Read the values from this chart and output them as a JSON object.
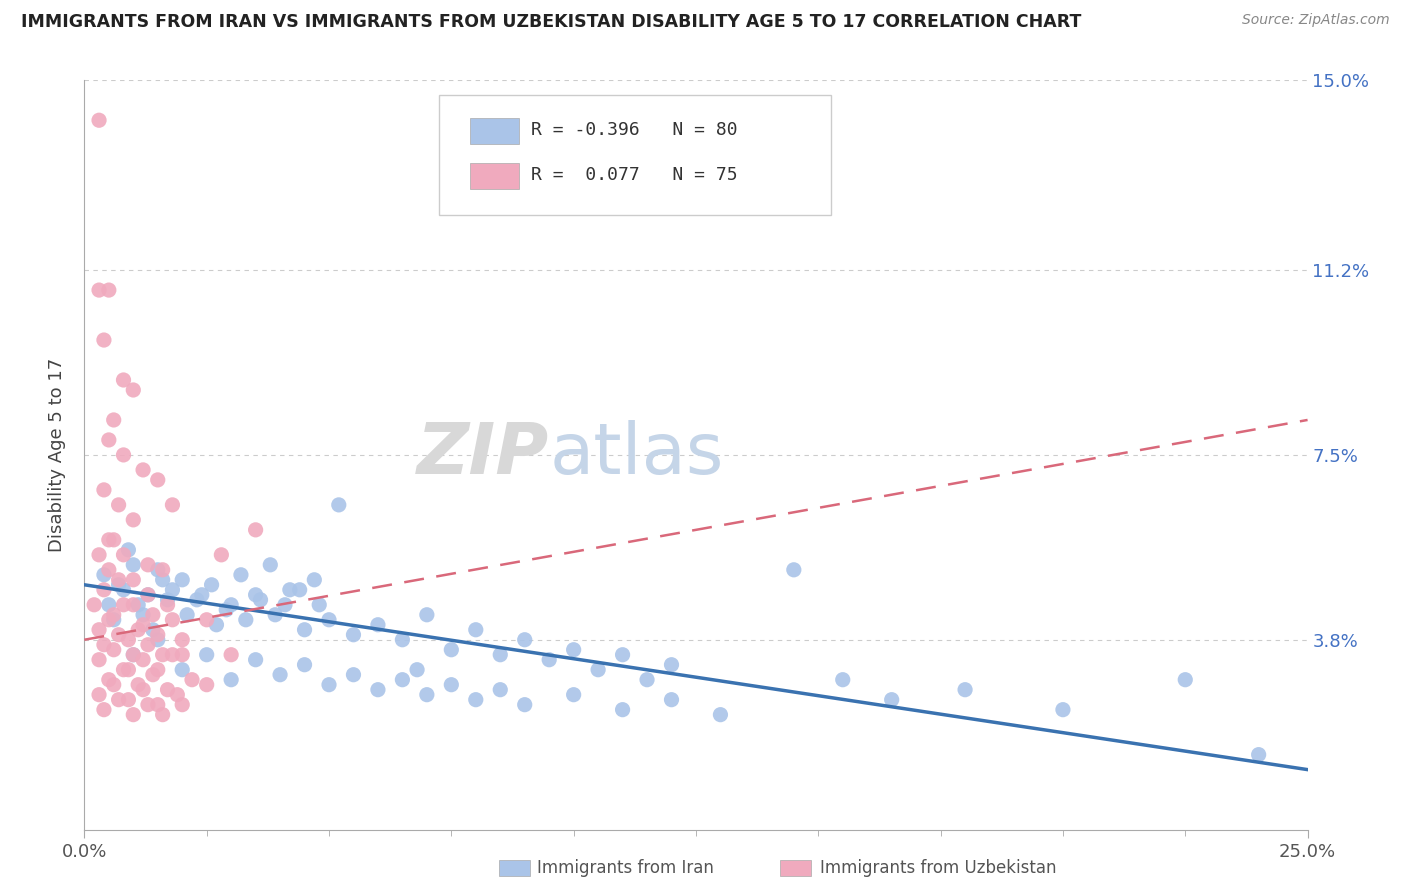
{
  "title": "IMMIGRANTS FROM IRAN VS IMMIGRANTS FROM UZBEKISTAN DISABILITY AGE 5 TO 17 CORRELATION CHART",
  "source": "Source: ZipAtlas.com",
  "ylabel": "Disability Age 5 to 17",
  "xlim": [
    0.0,
    25.0
  ],
  "ylim": [
    0.0,
    15.0
  ],
  "ytick_positions": [
    0.0,
    3.8,
    7.5,
    11.2,
    15.0
  ],
  "right_ytick_labels": [
    "",
    "3.8%",
    "7.5%",
    "11.2%",
    "15.0%"
  ],
  "legend_iran_R": "-0.396",
  "legend_iran_N": "80",
  "legend_uzbek_R": " 0.077",
  "legend_uzbek_N": "75",
  "iran_color": "#aac4e8",
  "uzbek_color": "#f0aabe",
  "iran_line_color": "#3a72b0",
  "uzbek_line_color": "#d9687a",
  "background_color": "#ffffff",
  "iran_scatter": [
    [
      0.4,
      5.1
    ],
    [
      0.7,
      4.9
    ],
    [
      1.0,
      5.3
    ],
    [
      1.3,
      4.7
    ],
    [
      1.6,
      5.0
    ],
    [
      0.5,
      4.5
    ],
    [
      0.9,
      5.6
    ],
    [
      1.2,
      4.3
    ],
    [
      1.5,
      5.2
    ],
    [
      1.8,
      4.8
    ],
    [
      2.0,
      5.0
    ],
    [
      2.3,
      4.6
    ],
    [
      2.6,
      4.9
    ],
    [
      2.9,
      4.4
    ],
    [
      3.2,
      5.1
    ],
    [
      3.5,
      4.7
    ],
    [
      3.8,
      5.3
    ],
    [
      4.1,
      4.5
    ],
    [
      4.4,
      4.8
    ],
    [
      4.7,
      5.0
    ],
    [
      0.6,
      4.2
    ],
    [
      0.8,
      4.8
    ],
    [
      1.1,
      4.5
    ],
    [
      1.4,
      4.0
    ],
    [
      1.7,
      4.6
    ],
    [
      2.1,
      4.3
    ],
    [
      2.4,
      4.7
    ],
    [
      2.7,
      4.1
    ],
    [
      3.0,
      4.5
    ],
    [
      3.3,
      4.2
    ],
    [
      3.6,
      4.6
    ],
    [
      3.9,
      4.3
    ],
    [
      4.2,
      4.8
    ],
    [
      4.5,
      4.0
    ],
    [
      4.8,
      4.5
    ],
    [
      5.0,
      4.2
    ],
    [
      5.5,
      3.9
    ],
    [
      6.0,
      4.1
    ],
    [
      6.5,
      3.8
    ],
    [
      7.0,
      4.3
    ],
    [
      7.5,
      3.6
    ],
    [
      8.0,
      4.0
    ],
    [
      8.5,
      3.5
    ],
    [
      9.0,
      3.8
    ],
    [
      9.5,
      3.4
    ],
    [
      10.0,
      3.6
    ],
    [
      10.5,
      3.2
    ],
    [
      11.0,
      3.5
    ],
    [
      11.5,
      3.0
    ],
    [
      12.0,
      3.3
    ],
    [
      1.0,
      3.5
    ],
    [
      1.5,
      3.8
    ],
    [
      2.0,
      3.2
    ],
    [
      2.5,
      3.5
    ],
    [
      3.0,
      3.0
    ],
    [
      3.5,
      3.4
    ],
    [
      4.0,
      3.1
    ],
    [
      4.5,
      3.3
    ],
    [
      5.0,
      2.9
    ],
    [
      5.5,
      3.1
    ],
    [
      6.0,
      2.8
    ],
    [
      6.5,
      3.0
    ],
    [
      7.0,
      2.7
    ],
    [
      7.5,
      2.9
    ],
    [
      8.0,
      2.6
    ],
    [
      8.5,
      2.8
    ],
    [
      9.0,
      2.5
    ],
    [
      10.0,
      2.7
    ],
    [
      11.0,
      2.4
    ],
    [
      12.0,
      2.6
    ],
    [
      5.2,
      6.5
    ],
    [
      6.8,
      3.2
    ],
    [
      13.0,
      2.3
    ],
    [
      14.5,
      5.2
    ],
    [
      15.5,
      3.0
    ],
    [
      16.5,
      2.6
    ],
    [
      18.0,
      2.8
    ],
    [
      20.0,
      2.4
    ],
    [
      22.5,
      3.0
    ],
    [
      24.0,
      1.5
    ]
  ],
  "uzbek_scatter": [
    [
      0.3,
      14.2
    ],
    [
      0.5,
      10.8
    ],
    [
      0.4,
      9.8
    ],
    [
      0.8,
      9.0
    ],
    [
      1.0,
      8.8
    ],
    [
      0.3,
      10.8
    ],
    [
      0.5,
      7.8
    ],
    [
      0.6,
      8.2
    ],
    [
      0.8,
      7.5
    ],
    [
      1.2,
      7.2
    ],
    [
      0.4,
      6.8
    ],
    [
      0.7,
      6.5
    ],
    [
      1.0,
      6.2
    ],
    [
      1.5,
      7.0
    ],
    [
      0.6,
      5.8
    ],
    [
      0.3,
      5.5
    ],
    [
      0.5,
      5.2
    ],
    [
      0.8,
      5.5
    ],
    [
      1.0,
      5.0
    ],
    [
      1.3,
      5.3
    ],
    [
      0.4,
      4.8
    ],
    [
      0.7,
      5.0
    ],
    [
      1.0,
      4.5
    ],
    [
      1.3,
      4.7
    ],
    [
      1.6,
      5.2
    ],
    [
      0.2,
      4.5
    ],
    [
      0.5,
      4.2
    ],
    [
      0.8,
      4.5
    ],
    [
      1.1,
      4.0
    ],
    [
      1.4,
      4.3
    ],
    [
      1.7,
      4.5
    ],
    [
      0.3,
      4.0
    ],
    [
      0.6,
      4.3
    ],
    [
      0.9,
      3.8
    ],
    [
      1.2,
      4.1
    ],
    [
      1.5,
      3.9
    ],
    [
      1.8,
      4.2
    ],
    [
      0.4,
      3.7
    ],
    [
      0.7,
      3.9
    ],
    [
      1.0,
      3.5
    ],
    [
      1.3,
      3.7
    ],
    [
      1.6,
      3.5
    ],
    [
      2.0,
      3.8
    ],
    [
      0.3,
      3.4
    ],
    [
      0.6,
      3.6
    ],
    [
      0.9,
      3.2
    ],
    [
      1.2,
      3.4
    ],
    [
      1.5,
      3.2
    ],
    [
      2.0,
      3.5
    ],
    [
      0.5,
      3.0
    ],
    [
      0.8,
      3.2
    ],
    [
      1.1,
      2.9
    ],
    [
      1.4,
      3.1
    ],
    [
      1.7,
      2.8
    ],
    [
      2.2,
      3.0
    ],
    [
      0.3,
      2.7
    ],
    [
      0.6,
      2.9
    ],
    [
      0.9,
      2.6
    ],
    [
      1.2,
      2.8
    ],
    [
      1.5,
      2.5
    ],
    [
      1.9,
      2.7
    ],
    [
      2.5,
      2.9
    ],
    [
      0.4,
      2.4
    ],
    [
      0.7,
      2.6
    ],
    [
      1.0,
      2.3
    ],
    [
      1.3,
      2.5
    ],
    [
      1.6,
      2.3
    ],
    [
      2.0,
      2.5
    ],
    [
      2.8,
      5.5
    ],
    [
      3.5,
      6.0
    ],
    [
      2.5,
      4.2
    ],
    [
      3.0,
      3.5
    ],
    [
      1.8,
      6.5
    ],
    [
      0.5,
      5.8
    ],
    [
      1.8,
      3.5
    ]
  ],
  "iran_trendline_x": [
    0.0,
    25.0
  ],
  "iran_trendline_y": [
    4.9,
    1.2
  ],
  "uzbek_trendline_x": [
    0.0,
    25.0
  ],
  "uzbek_trendline_y": [
    3.8,
    8.2
  ]
}
